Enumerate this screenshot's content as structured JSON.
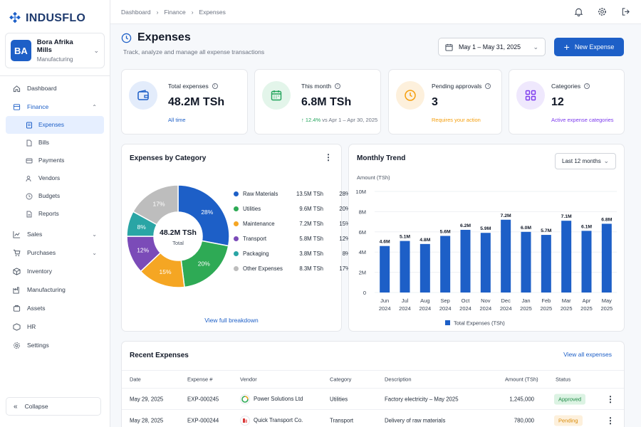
{
  "brand": {
    "name": "INDUSFLO",
    "color": "#1d5fc7"
  },
  "org": {
    "initials": "BA",
    "name": "Bora Afrika Mills",
    "type": "Manufacturing"
  },
  "nav": {
    "dashboard": "Dashboard",
    "finance": "Finance",
    "finance_items": [
      "Expenses",
      "Bills",
      "Payments",
      "Vendors",
      "Budgets",
      "Reports"
    ],
    "sales": "Sales",
    "purchases": "Purchases",
    "inventory": "Inventory",
    "manufacturing": "Manufacturing",
    "assets": "Assets",
    "hr": "HR",
    "settings": "Settings",
    "collapse": "Collapse"
  },
  "breadcrumb": [
    "Dashboard",
    "Finance",
    "Expenses"
  ],
  "header": {
    "title": "Expenses",
    "subtitle": "Track, analyze and manage all expense transactions",
    "date_range": "May 1 – May 31, 2025",
    "new_button": "New Expense"
  },
  "kpis": [
    {
      "label": "Total expenses",
      "value": "48.2M TSh",
      "note": "All time",
      "note_color": "#1d5fc7",
      "icon": "wallet-icon",
      "icon_bg": "#e3ecfb",
      "icon_color": "#1d5fc7"
    },
    {
      "label": "This month",
      "value": "6.8M TSh",
      "note_change": "12.4%",
      "note_rest": "vs Apr 1 – Apr 30, 2025",
      "icon": "calendar-icon",
      "icon_bg": "#e3f5ea",
      "icon_color": "#22a45b"
    },
    {
      "label": "Pending approvals",
      "value": "3",
      "note": "Requires your action",
      "note_color": "#f59e0b",
      "icon": "clock-icon",
      "icon_bg": "#fdf0dc",
      "icon_color": "#f59e0b"
    },
    {
      "label": "Categories",
      "value": "12",
      "note": "Active expense categories",
      "note_color": "#7c3aed",
      "icon": "grid-icon",
      "icon_bg": "#efe8fd",
      "icon_color": "#7c3aed"
    }
  ],
  "category_panel": {
    "title": "Expenses by Category",
    "center_value": "48.2M TSh",
    "center_label": "Total",
    "link": "View full breakdown"
  },
  "trend_panel": {
    "title": "Monthly Trend",
    "range": "Last 12 months"
  },
  "chart_data": [
    {
      "type": "pie",
      "title": "Expenses by Category",
      "slices": [
        {
          "name": "Raw Materials",
          "value": "13.5M TSh",
          "percent": 28,
          "color": "#1d5fc7"
        },
        {
          "name": "Utilities",
          "value": "9.6M TSh",
          "percent": 20,
          "color": "#2eaa55"
        },
        {
          "name": "Maintenance",
          "value": "7.2M TSh",
          "percent": 15,
          "color": "#f5a623"
        },
        {
          "name": "Transport",
          "value": "5.8M TSh",
          "percent": 12,
          "color": "#7b4bb8"
        },
        {
          "name": "Packaging",
          "value": "3.8M TSh",
          "percent": 8,
          "color": "#2aa5a5"
        },
        {
          "name": "Other Expenses",
          "value": "8.3M TSh",
          "percent": 17,
          "color": "#bdbdbd"
        }
      ]
    },
    {
      "type": "bar",
      "title": "Monthly Trend",
      "ylabel": "Amount (TSh)",
      "ylim": [
        0,
        10
      ],
      "yticks": [
        "0",
        "2M",
        "4M",
        "6M",
        "8M",
        "10M"
      ],
      "categories": [
        [
          "Jun",
          "2024"
        ],
        [
          "Jul",
          "2024"
        ],
        [
          "Aug",
          "2024"
        ],
        [
          "Sep",
          "2024"
        ],
        [
          "Oct",
          "2024"
        ],
        [
          "Nov",
          "2024"
        ],
        [
          "Dec",
          "2024"
        ],
        [
          "Jan",
          "2025"
        ],
        [
          "Feb",
          "2025"
        ],
        [
          "Mar",
          "2025"
        ],
        [
          "Apr",
          "2025"
        ],
        [
          "May",
          "2025"
        ]
      ],
      "values": [
        4.6,
        5.1,
        4.8,
        5.6,
        6.2,
        5.9,
        7.2,
        6.0,
        5.7,
        7.1,
        6.1,
        6.8
      ],
      "labels": [
        "4.6M",
        "5.1M",
        "4.8M",
        "5.6M",
        "6.2M",
        "5.9M",
        "7.2M",
        "6.0M",
        "5.7M",
        "7.1M",
        "6.1M",
        "6.8M"
      ],
      "series_name": "Total Expenses (TSh)",
      "color": "#1d5fc7"
    }
  ],
  "recent": {
    "title": "Recent Expenses",
    "link": "View all expenses",
    "columns": [
      "Date",
      "Expense #",
      "Vendor",
      "Category",
      "Description",
      "Amount (TSh)",
      "Status"
    ],
    "rows": [
      {
        "date": "May 29, 2025",
        "num": "EXP-000245",
        "vendor": "Power Solutions Ltd",
        "category": "Utilities",
        "description": "Factory electricity – May 2025",
        "amount": "1,245,000",
        "status": "Approved",
        "status_bg": "#dcf3e3",
        "status_color": "#1e8a45"
      },
      {
        "date": "May 28, 2025",
        "num": "EXP-000244",
        "vendor": "Quick Transport Co.",
        "category": "Transport",
        "description": "Delivery of raw materials",
        "amount": "780,000",
        "status": "Pending",
        "status_bg": "#fdf0dc",
        "status_color": "#d98a06"
      }
    ]
  }
}
